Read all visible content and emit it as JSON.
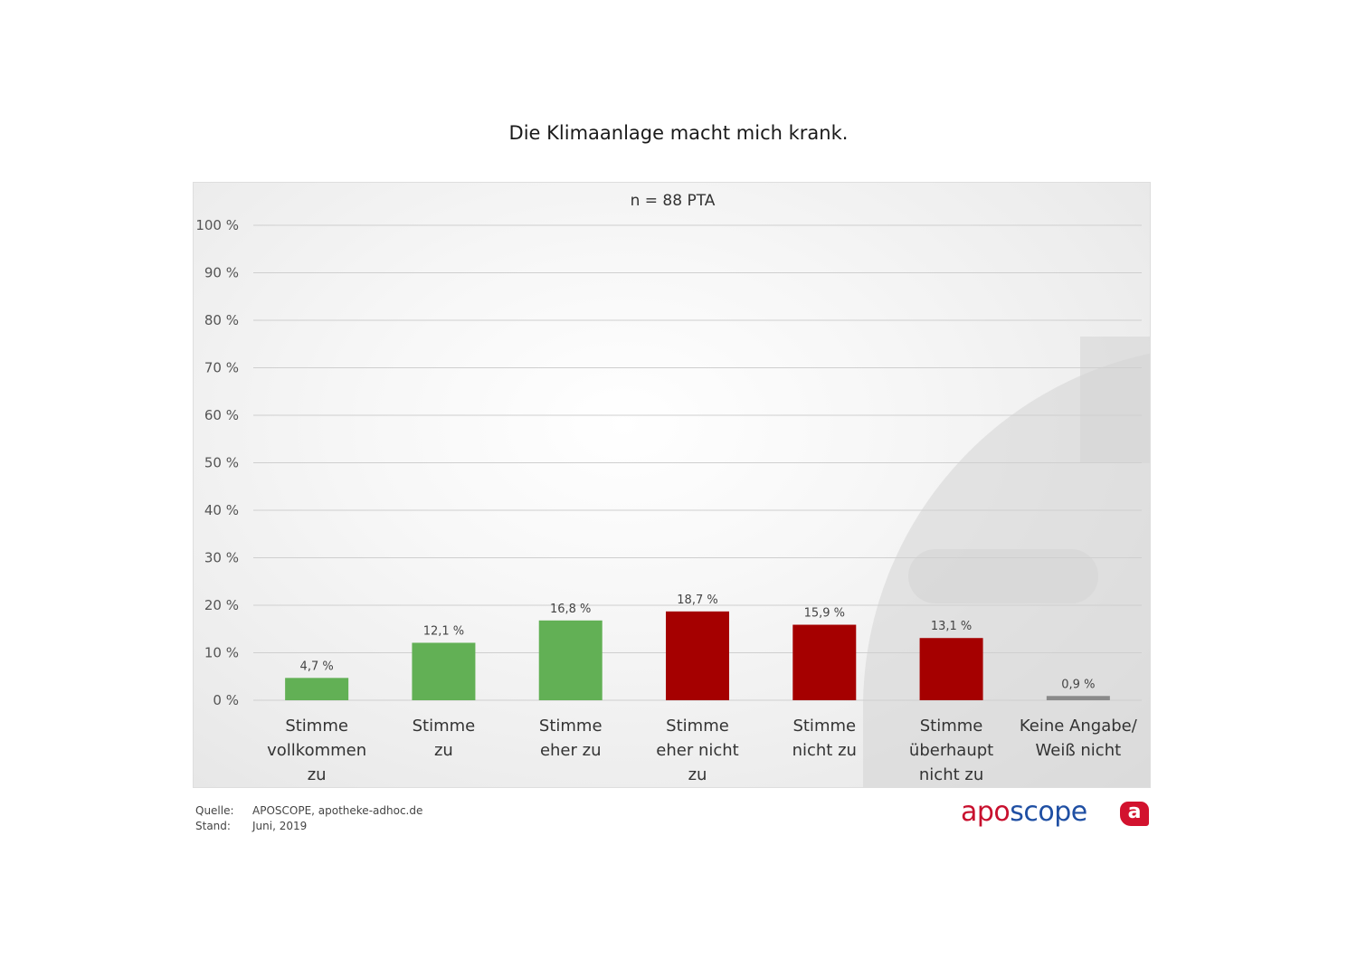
{
  "page": {
    "title": "Die Klimaanlage macht mich krank.",
    "subtitle": "n = 88 PTA"
  },
  "footer": {
    "source_label": "Quelle:",
    "source_value": "APOSCOPE, apotheke-adhoc.de",
    "date_label": "Stand:",
    "date_value": "Juni, 2019"
  },
  "logo": {
    "part1": "apo",
    "part2": "scope",
    "badge": "a",
    "color1": "#c8102e",
    "color2": "#1f4fa3"
  },
  "chart_data": {
    "type": "bar",
    "title": "Die Klimaanlage macht mich krank.",
    "subtitle": "n = 88 PTA",
    "xlabel": "",
    "ylabel": "",
    "ylim": [
      0,
      100
    ],
    "yticks": [
      0,
      10,
      20,
      30,
      40,
      50,
      60,
      70,
      80,
      90,
      100
    ],
    "ytick_labels": [
      "0 %",
      "10 %",
      "20 %",
      "30 %",
      "40 %",
      "50 %",
      "60 %",
      "70 %",
      "80 %",
      "90 %",
      "100 %"
    ],
    "grid": true,
    "categories": [
      [
        "Stimme",
        "vollkommen",
        "zu"
      ],
      [
        "Stimme",
        "zu"
      ],
      [
        "Stimme",
        "eher zu"
      ],
      [
        "Stimme",
        "eher nicht",
        "zu"
      ],
      [
        "Stimme",
        "nicht zu"
      ],
      [
        "Stimme",
        "überhaupt",
        "nicht zu"
      ],
      [
        "Keine Angabe/",
        "Weiß nicht"
      ]
    ],
    "values": [
      4.7,
      12.1,
      16.8,
      18.7,
      15.9,
      13.1,
      0.9
    ],
    "value_labels": [
      "4,7 %",
      "12,1 %",
      "16,8 %",
      "18,7 %",
      "15,9 %",
      "13,1 %",
      "0,9 %"
    ],
    "colors": [
      "#62b055",
      "#62b055",
      "#62b055",
      "#a50000",
      "#a50000",
      "#a50000",
      "#8a8a8a"
    ]
  }
}
